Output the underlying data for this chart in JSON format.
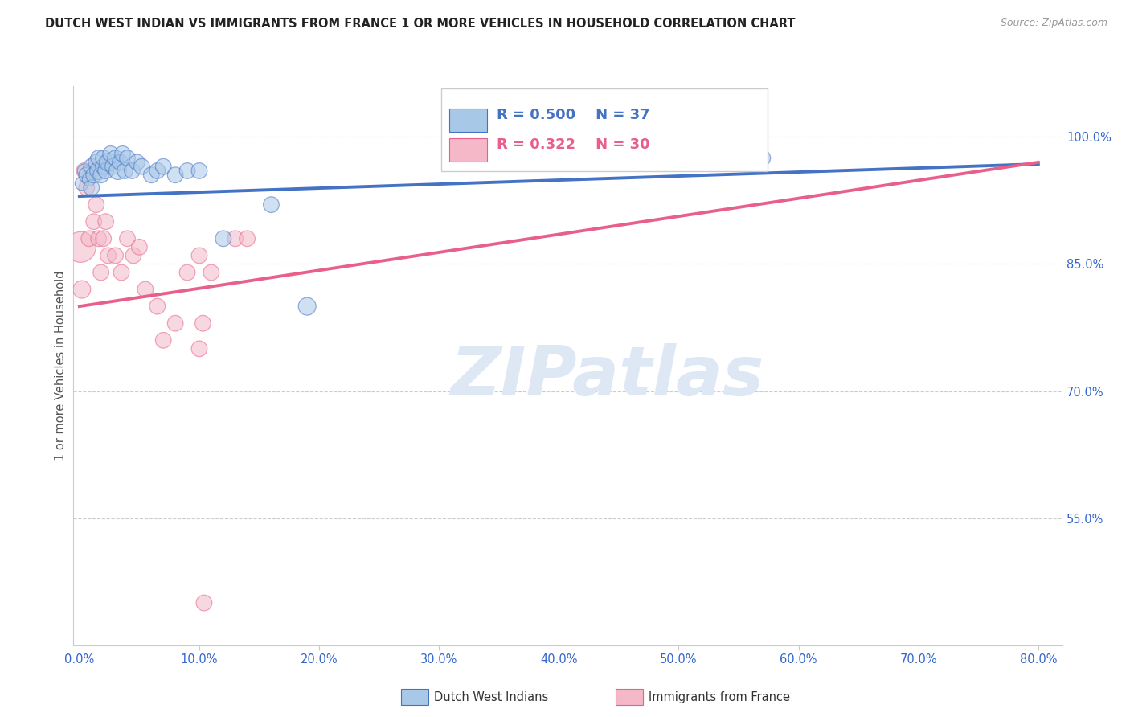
{
  "title": "DUTCH WEST INDIAN VS IMMIGRANTS FROM FRANCE 1 OR MORE VEHICLES IN HOUSEHOLD CORRELATION CHART",
  "source": "Source: ZipAtlas.com",
  "ylabel": "1 or more Vehicles in Household",
  "y_tick_labels": [
    "55.0%",
    "70.0%",
    "85.0%",
    "100.0%"
  ],
  "y_tick_values": [
    0.55,
    0.7,
    0.85,
    1.0
  ],
  "x_tick_positions": [
    0.0,
    0.1,
    0.2,
    0.3,
    0.4,
    0.5,
    0.6,
    0.7,
    0.8
  ],
  "x_tick_labels": [
    "0.0%",
    "10.0%",
    "20.0%",
    "30.0%",
    "40.0%",
    "50.0%",
    "60.0%",
    "70.0%",
    "80.0%"
  ],
  "x_lim": [
    -0.005,
    0.82
  ],
  "y_lim": [
    0.4,
    1.06
  ],
  "legend_blue_r": "R = 0.500",
  "legend_blue_n": "N = 37",
  "legend_pink_r": "R = 0.322",
  "legend_pink_n": "N = 30",
  "legend_label_blue": "Dutch West Indians",
  "legend_label_pink": "Immigrants from France",
  "blue_color": "#a8c8e8",
  "pink_color": "#f4b8c8",
  "trend_blue_color": "#4472c4",
  "trend_pink_color": "#e8608a",
  "axis_color": "#3366cc",
  "grid_color": "#cccccc",
  "watermark_text": "ZIPatlas",
  "watermark_color": "#dde8f4",
  "blue_scatter_x": [
    0.002,
    0.004,
    0.006,
    0.008,
    0.01,
    0.01,
    0.012,
    0.014,
    0.016,
    0.016,
    0.018,
    0.02,
    0.02,
    0.022,
    0.024,
    0.026,
    0.028,
    0.03,
    0.032,
    0.034,
    0.036,
    0.038,
    0.04,
    0.044,
    0.048,
    0.052,
    0.06,
    0.065,
    0.07,
    0.08,
    0.09,
    0.1,
    0.12,
    0.16,
    0.19,
    0.56,
    0.57
  ],
  "blue_scatter_y": [
    0.945,
    0.96,
    0.955,
    0.95,
    0.94,
    0.965,
    0.955,
    0.97,
    0.96,
    0.975,
    0.955,
    0.965,
    0.975,
    0.96,
    0.97,
    0.98,
    0.965,
    0.975,
    0.96,
    0.97,
    0.98,
    0.96,
    0.975,
    0.96,
    0.97,
    0.965,
    0.955,
    0.96,
    0.965,
    0.955,
    0.96,
    0.96,
    0.88,
    0.92,
    0.8,
    0.975,
    0.975
  ],
  "blue_scatter_size": [
    60,
    60,
    80,
    60,
    80,
    80,
    80,
    80,
    100,
    80,
    80,
    80,
    80,
    80,
    100,
    80,
    80,
    80,
    100,
    80,
    80,
    80,
    80,
    80,
    80,
    80,
    80,
    80,
    80,
    80,
    80,
    80,
    80,
    80,
    100,
    80,
    80
  ],
  "pink_scatter_x": [
    0.001,
    0.002,
    0.004,
    0.006,
    0.008,
    0.01,
    0.012,
    0.014,
    0.016,
    0.018,
    0.02,
    0.022,
    0.024,
    0.03,
    0.035,
    0.04,
    0.045,
    0.05,
    0.055,
    0.065,
    0.07,
    0.08,
    0.09,
    0.1,
    0.11,
    0.13,
    0.14,
    0.1,
    0.103,
    0.104
  ],
  "pink_scatter_y": [
    0.87,
    0.82,
    0.96,
    0.94,
    0.88,
    0.96,
    0.9,
    0.92,
    0.88,
    0.84,
    0.88,
    0.9,
    0.86,
    0.86,
    0.84,
    0.88,
    0.86,
    0.87,
    0.82,
    0.8,
    0.76,
    0.78,
    0.84,
    0.86,
    0.84,
    0.88,
    0.88,
    0.75,
    0.78,
    0.45
  ],
  "pink_scatter_size": [
    300,
    100,
    80,
    80,
    80,
    80,
    80,
    80,
    80,
    80,
    80,
    80,
    80,
    80,
    80,
    80,
    80,
    80,
    80,
    80,
    80,
    80,
    80,
    80,
    80,
    80,
    80,
    80,
    80,
    80
  ],
  "blue_trend_x": [
    0.0,
    0.8
  ],
  "blue_trend_y": [
    0.93,
    0.968
  ],
  "pink_trend_x": [
    0.0,
    0.8
  ],
  "pink_trend_y": [
    0.8,
    0.97
  ]
}
